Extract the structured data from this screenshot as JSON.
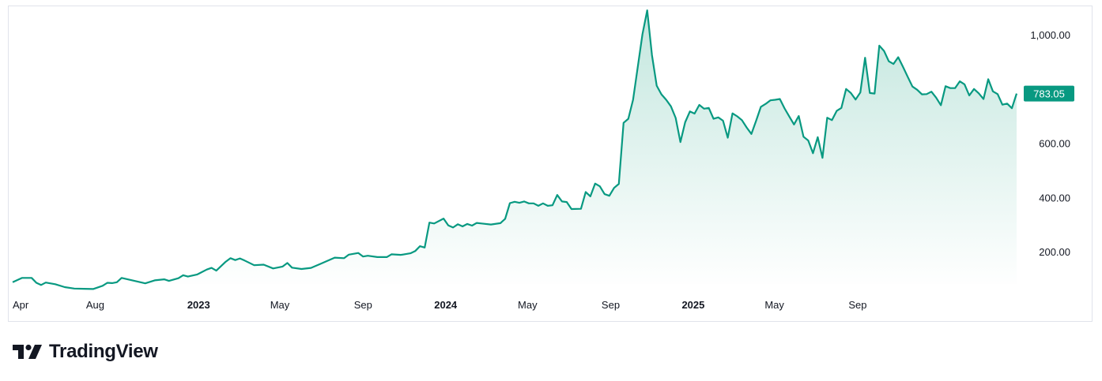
{
  "colors": {
    "line": "#089981",
    "fill_top": "#bfe5dc",
    "price_badge": "#089981",
    "text": "#131722",
    "border": "#e0e3eb"
  },
  "brand": {
    "name": "TradingView",
    "logo_icon": "tradingview-logo-icon"
  },
  "price_badge": "783.05",
  "chart_data": {
    "type": "area",
    "ylim": [
      80,
      1100
    ],
    "y_ticks": [
      {
        "value": 200,
        "label": "200.00"
      },
      {
        "value": 400,
        "label": "400.00"
      },
      {
        "value": 600,
        "label": "600.00"
      },
      {
        "value": 1000,
        "label": "1,000.00"
      }
    ],
    "x_ticks": [
      {
        "date": "2022-04-01",
        "label": "Apr",
        "bold": false
      },
      {
        "date": "2022-08-01",
        "label": "Aug",
        "bold": false
      },
      {
        "date": "2023-01-01",
        "label": "2023",
        "bold": true
      },
      {
        "date": "2023-05-01",
        "label": "May",
        "bold": false
      },
      {
        "date": "2023-09-01",
        "label": "Sep",
        "bold": false
      },
      {
        "date": "2024-01-01",
        "label": "2024",
        "bold": true
      },
      {
        "date": "2024-05-01",
        "label": "May",
        "bold": false
      },
      {
        "date": "2024-09-01",
        "label": "Sep",
        "bold": false
      },
      {
        "date": "2025-01-01",
        "label": "2025",
        "bold": true
      },
      {
        "date": "2025-05-01",
        "label": "May",
        "bold": false
      },
      {
        "date": "2025-09-01",
        "label": "Sep",
        "bold": false
      }
    ],
    "series": [
      {
        "values": [
          [
            "2022-04-01",
            87
          ],
          [
            "2022-04-15",
            103
          ],
          [
            "2022-04-29",
            103
          ],
          [
            "2022-05-06",
            85
          ],
          [
            "2022-05-13",
            77
          ],
          [
            "2022-05-20",
            86
          ],
          [
            "2022-06-03",
            80
          ],
          [
            "2022-06-17",
            69
          ],
          [
            "2022-07-01",
            64
          ],
          [
            "2022-07-15",
            63
          ],
          [
            "2022-07-29",
            62
          ],
          [
            "2022-08-12",
            74
          ],
          [
            "2022-08-19",
            85
          ],
          [
            "2022-08-26",
            84
          ],
          [
            "2022-09-02",
            87
          ],
          [
            "2022-09-09",
            103
          ],
          [
            "2022-09-23",
            95
          ],
          [
            "2022-10-14",
            83
          ],
          [
            "2022-10-28",
            94
          ],
          [
            "2022-11-11",
            98
          ],
          [
            "2022-11-18",
            92
          ],
          [
            "2022-12-02",
            102
          ],
          [
            "2022-12-09",
            113
          ],
          [
            "2022-12-16",
            108
          ],
          [
            "2022-12-30",
            116
          ],
          [
            "2023-01-13",
            134
          ],
          [
            "2023-01-20",
            140
          ],
          [
            "2023-01-27",
            130
          ],
          [
            "2023-02-10",
            163
          ],
          [
            "2023-02-17",
            176
          ],
          [
            "2023-02-24",
            169
          ],
          [
            "2023-03-03",
            175
          ],
          [
            "2023-03-10",
            167
          ],
          [
            "2023-03-24",
            150
          ],
          [
            "2023-04-07",
            152
          ],
          [
            "2023-04-21",
            138
          ],
          [
            "2023-05-05",
            145
          ],
          [
            "2023-05-12",
            158
          ],
          [
            "2023-05-19",
            141
          ],
          [
            "2023-06-02",
            136
          ],
          [
            "2023-06-16",
            140
          ],
          [
            "2023-06-30",
            155
          ],
          [
            "2023-07-21",
            178
          ],
          [
            "2023-08-04",
            176
          ],
          [
            "2023-08-11",
            189
          ],
          [
            "2023-08-25",
            195
          ],
          [
            "2023-09-01",
            182
          ],
          [
            "2023-09-08",
            185
          ],
          [
            "2023-09-22",
            180
          ],
          [
            "2023-10-06",
            180
          ],
          [
            "2023-10-13",
            190
          ],
          [
            "2023-10-27",
            188
          ],
          [
            "2023-11-10",
            194
          ],
          [
            "2023-11-17",
            202
          ],
          [
            "2023-11-24",
            220
          ],
          [
            "2023-12-01",
            215
          ],
          [
            "2023-12-08",
            307
          ],
          [
            "2023-12-15",
            304
          ],
          [
            "2023-12-29",
            322
          ],
          [
            "2024-01-05",
            297
          ],
          [
            "2024-01-12",
            289
          ],
          [
            "2024-01-19",
            301
          ],
          [
            "2024-01-26",
            293
          ],
          [
            "2024-02-02",
            302
          ],
          [
            "2024-02-09",
            296
          ],
          [
            "2024-02-16",
            306
          ],
          [
            "2024-02-23",
            304
          ],
          [
            "2024-03-08",
            300
          ],
          [
            "2024-03-22",
            305
          ],
          [
            "2024-03-29",
            321
          ],
          [
            "2024-04-05",
            379
          ],
          [
            "2024-04-12",
            384
          ],
          [
            "2024-04-19",
            380
          ],
          [
            "2024-04-26",
            385
          ],
          [
            "2024-05-03",
            378
          ],
          [
            "2024-05-10",
            378
          ],
          [
            "2024-05-17",
            369
          ],
          [
            "2024-05-24",
            378
          ],
          [
            "2024-05-31",
            369
          ],
          [
            "2024-06-07",
            371
          ],
          [
            "2024-06-14",
            409
          ],
          [
            "2024-06-21",
            385
          ],
          [
            "2024-06-28",
            383
          ],
          [
            "2024-07-05",
            357
          ],
          [
            "2024-07-19",
            358
          ],
          [
            "2024-07-26",
            420
          ],
          [
            "2024-08-02",
            404
          ],
          [
            "2024-08-09",
            451
          ],
          [
            "2024-08-16",
            441
          ],
          [
            "2024-08-23",
            412
          ],
          [
            "2024-08-30",
            406
          ],
          [
            "2024-09-06",
            435
          ],
          [
            "2024-09-13",
            450
          ],
          [
            "2024-09-20",
            675
          ],
          [
            "2024-09-27",
            690
          ],
          [
            "2024-10-04",
            760
          ],
          [
            "2024-10-18",
            1002
          ],
          [
            "2024-10-25",
            1090
          ],
          [
            "2024-11-01",
            925
          ],
          [
            "2024-11-08",
            812
          ],
          [
            "2024-11-15",
            780
          ],
          [
            "2024-11-22",
            760
          ],
          [
            "2024-11-29",
            736
          ],
          [
            "2024-12-06",
            693
          ],
          [
            "2024-12-13",
            604
          ],
          [
            "2024-12-20",
            677
          ],
          [
            "2024-12-27",
            717
          ],
          [
            "2025-01-03",
            709
          ],
          [
            "2025-01-10",
            741
          ],
          [
            "2025-01-17",
            727
          ],
          [
            "2025-01-24",
            730
          ],
          [
            "2025-01-31",
            690
          ],
          [
            "2025-02-07",
            695
          ],
          [
            "2025-02-14",
            683
          ],
          [
            "2025-02-21",
            620
          ],
          [
            "2025-02-28",
            710
          ],
          [
            "2025-03-07",
            699
          ],
          [
            "2025-03-14",
            685
          ],
          [
            "2025-03-21",
            658
          ],
          [
            "2025-03-28",
            634
          ],
          [
            "2025-04-04",
            683
          ],
          [
            "2025-04-11",
            734
          ],
          [
            "2025-04-18",
            745
          ],
          [
            "2025-04-25",
            758
          ],
          [
            "2025-05-02",
            760
          ],
          [
            "2025-05-09",
            763
          ],
          [
            "2025-05-16",
            728
          ],
          [
            "2025-05-23",
            698
          ],
          [
            "2025-05-30",
            669
          ],
          [
            "2025-06-06",
            700
          ],
          [
            "2025-06-13",
            624
          ],
          [
            "2025-06-20",
            610
          ],
          [
            "2025-06-27",
            563
          ],
          [
            "2025-07-04",
            622
          ],
          [
            "2025-07-11",
            546
          ],
          [
            "2025-07-18",
            694
          ],
          [
            "2025-07-25",
            685
          ],
          [
            "2025-08-01",
            719
          ],
          [
            "2025-08-08",
            730
          ],
          [
            "2025-08-15",
            800
          ],
          [
            "2025-08-22",
            785
          ],
          [
            "2025-08-29",
            761
          ],
          [
            "2025-09-05",
            787
          ],
          [
            "2025-09-12",
            915
          ],
          [
            "2025-09-19",
            785
          ],
          [
            "2025-09-26",
            783
          ],
          [
            "2025-10-03",
            960
          ],
          [
            "2025-10-10",
            940
          ],
          [
            "2025-10-17",
            902
          ],
          [
            "2025-10-24",
            892
          ],
          [
            "2025-10-31",
            917
          ],
          [
            "2025-11-07",
            882
          ],
          [
            "2025-11-14",
            845
          ],
          [
            "2025-11-21",
            809
          ],
          [
            "2025-11-28",
            797
          ],
          [
            "2025-12-05",
            780
          ],
          [
            "2025-12-12",
            781
          ],
          [
            "2025-12-19",
            790
          ],
          [
            "2025-12-26",
            768
          ],
          [
            "2026-01-02",
            740
          ],
          [
            "2026-01-09",
            810
          ],
          [
            "2026-01-16",
            803
          ],
          [
            "2026-01-23",
            803
          ],
          [
            "2026-01-30",
            828
          ],
          [
            "2026-02-06",
            817
          ],
          [
            "2026-02-13",
            776
          ],
          [
            "2026-02-20",
            800
          ],
          [
            "2026-02-27",
            784
          ],
          [
            "2026-03-06",
            763
          ],
          [
            "2026-03-13",
            836
          ],
          [
            "2026-03-20",
            791
          ],
          [
            "2026-03-27",
            781
          ],
          [
            "2026-04-03",
            742
          ],
          [
            "2026-04-10",
            746
          ],
          [
            "2026-04-17",
            729
          ],
          [
            "2026-04-24",
            783
          ]
        ]
      }
    ]
  }
}
